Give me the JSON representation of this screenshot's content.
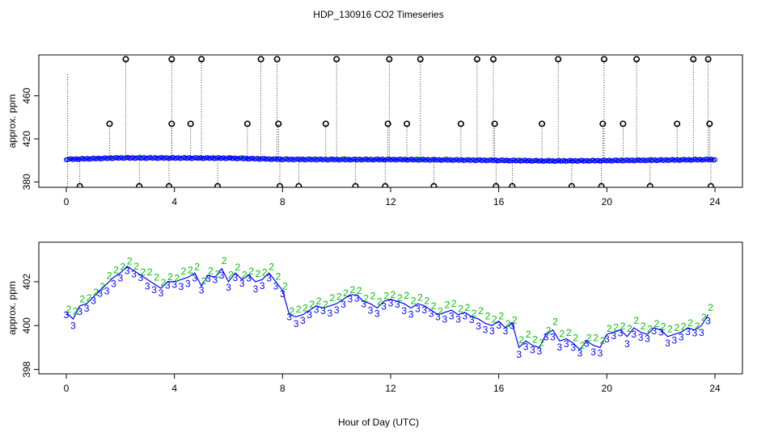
{
  "title": "HDP_130916  CO2 Timeseries",
  "xlabel": "Hour of Day (UTC)",
  "colors": {
    "background": "#ffffff",
    "axis": "#000000",
    "series_2": "#00c000",
    "series_3": "#0000ff",
    "line": "#0000ff",
    "outlier": "#000000",
    "vline": "#000000"
  },
  "chart_data": [
    {
      "type": "scatter",
      "title": "HDP_130916  CO2 Timeseries",
      "xlabel": "",
      "ylabel": "approx. ppm",
      "xlim": [
        0,
        24
      ],
      "ylim": [
        375,
        498
      ],
      "xticks": [
        0,
        4,
        8,
        12,
        16,
        20,
        24
      ],
      "yticks": [
        380,
        420,
        460
      ],
      "grid": false,
      "marker_symbol": "o",
      "baseline": {
        "x": [
          0,
          2,
          4,
          6,
          8,
          10,
          12,
          14,
          16,
          18,
          20,
          22,
          24
        ],
        "y": [
          401.0,
          402.3,
          402.2,
          402.1,
          401.0,
          400.8,
          400.8,
          400.5,
          400.0,
          399.5,
          399.8,
          400.3,
          400.8
        ]
      },
      "outliers": {
        "x": [
          0.5,
          1.6,
          2.2,
          2.7,
          3.8,
          3.9,
          3.9,
          4.6,
          5.0,
          5.6,
          6.7,
          7.2,
          7.8,
          7.85,
          7.9,
          8.6,
          9.6,
          10.0,
          10.7,
          11.8,
          11.9,
          11.95,
          12.6,
          13.1,
          13.6,
          14.6,
          15.2,
          15.8,
          15.85,
          15.9,
          16.5,
          17.6,
          18.2,
          18.7,
          19.8,
          19.85,
          19.9,
          20.6,
          21.1,
          21.6,
          22.6,
          23.2,
          23.75,
          23.8,
          23.85
        ],
        "y": [
          376,
          434,
          494,
          376,
          376,
          434,
          494,
          434,
          494,
          376,
          434,
          494,
          494,
          434,
          376,
          376,
          434,
          494,
          376,
          376,
          434,
          494,
          434,
          494,
          376,
          434,
          494,
          494,
          434,
          376,
          376,
          434,
          494,
          376,
          376,
          434,
          494,
          434,
          494,
          376,
          434,
          494,
          494,
          434,
          376
        ]
      }
    },
    {
      "type": "line",
      "title": "",
      "xlabel": "Hour of Day (UTC)",
      "ylabel": "approx. ppm",
      "xlim": [
        0,
        24
      ],
      "ylim": [
        397.8,
        403.8
      ],
      "xticks": [
        0,
        4,
        8,
        12,
        16,
        20,
        24
      ],
      "yticks": [
        398,
        400,
        402
      ],
      "grid": false,
      "marker_labels": [
        "2",
        "3"
      ],
      "x": [
        0.0,
        0.25,
        0.5,
        0.75,
        1.0,
        1.25,
        1.5,
        1.75,
        2.0,
        2.25,
        2.5,
        2.75,
        3.0,
        3.25,
        3.5,
        3.75,
        4.0,
        4.25,
        4.5,
        4.75,
        5.0,
        5.25,
        5.5,
        5.75,
        6.0,
        6.25,
        6.5,
        6.75,
        7.0,
        7.25,
        7.5,
        7.75,
        8.0,
        8.25,
        8.5,
        8.75,
        9.0,
        9.25,
        9.5,
        9.75,
        10.0,
        10.25,
        10.5,
        10.75,
        11.0,
        11.25,
        11.5,
        11.75,
        12.0,
        12.25,
        12.5,
        12.75,
        13.0,
        13.25,
        13.5,
        13.75,
        14.0,
        14.25,
        14.5,
        14.75,
        15.0,
        15.25,
        15.5,
        15.75,
        16.0,
        16.25,
        16.5,
        16.75,
        17.0,
        17.25,
        17.5,
        17.75,
        18.0,
        18.25,
        18.5,
        18.75,
        19.0,
        19.25,
        19.5,
        19.75,
        20.0,
        20.25,
        20.5,
        20.75,
        21.0,
        21.25,
        21.5,
        21.75,
        22.0,
        22.25,
        22.5,
        22.75,
        23.0,
        23.25,
        23.5,
        23.75
      ],
      "y": [
        400.6,
        400.3,
        400.9,
        401.0,
        401.3,
        401.6,
        401.9,
        402.2,
        402.4,
        402.7,
        402.5,
        402.3,
        402.1,
        401.9,
        401.7,
        402.0,
        402.0,
        402.1,
        402.2,
        402.4,
        401.8,
        402.3,
        402.2,
        402.6,
        402.0,
        402.4,
        402.1,
        402.3,
        402.0,
        402.1,
        402.4,
        402.0,
        401.6,
        400.5,
        400.4,
        400.5,
        400.7,
        400.9,
        400.8,
        400.9,
        401.0,
        401.2,
        401.4,
        401.4,
        401.1,
        401.0,
        400.8,
        401.1,
        401.2,
        401.1,
        401.0,
        400.8,
        401.0,
        400.9,
        400.7,
        400.5,
        400.6,
        400.7,
        400.5,
        400.6,
        400.4,
        400.3,
        400.1,
        400.0,
        400.2,
        399.9,
        400.1,
        399.0,
        399.3,
        399.1,
        399.0,
        399.6,
        399.8,
        399.3,
        399.4,
        399.2,
        398.9,
        399.3,
        399.1,
        399.0,
        399.6,
        399.7,
        399.8,
        399.5,
        399.9,
        399.7,
        399.6,
        399.9,
        399.8,
        399.5,
        399.6,
        399.7,
        399.9,
        399.8,
        400.0,
        400.5
      ]
    }
  ]
}
